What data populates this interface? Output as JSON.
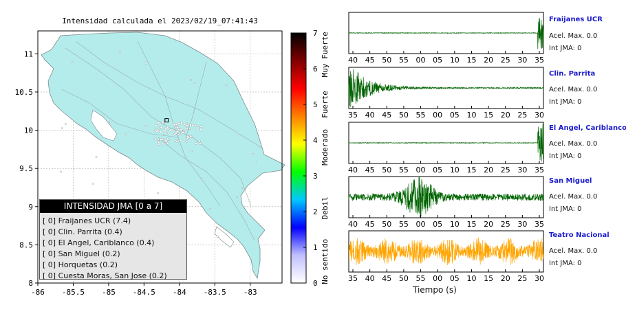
{
  "chart_data": [
    {
      "type": "map",
      "title": "Intensidad calculada el 2023/02/19_07:41:43",
      "x_ticks": [
        "-86",
        "-85.5",
        "-85",
        "-84.5",
        "-84",
        "-83.5",
        "-83"
      ],
      "y_ticks": [
        "11",
        "10.5",
        "10",
        "9.5",
        "9",
        "8.5",
        "8"
      ],
      "xlim": [
        -86,
        -82.55
      ],
      "ylim": [
        8,
        11.3
      ],
      "grid": true,
      "land_color": "#b4ecec",
      "sea_color": "#ffffff",
      "marker": {
        "lon": -84.18,
        "lat": 10.13
      }
    },
    {
      "type": "colorbar",
      "ticks": [
        "0",
        "1",
        "2",
        "3",
        "4",
        "5",
        "6",
        "7"
      ],
      "range": [
        0,
        7
      ],
      "category_labels": [
        "No sentido",
        "Debil",
        "Moderado",
        "Fuerte",
        "Muy Fuerte"
      ],
      "colors": [
        "#ffffff",
        "#c0c0ff",
        "#0000ff",
        "#00c8ff",
        "#00ff00",
        "#ffff00",
        "#ff8000",
        "#ff0000",
        "#800000",
        "#000000"
      ]
    },
    {
      "type": "line",
      "xlabel": "Tiempo (s)",
      "traces": [
        {
          "station": "Fraijanes UCR",
          "acel_text": "Acel. Max. 0.0",
          "jma_text": "Int JMA: 0",
          "color": "#006400",
          "ticks": [
            "40",
            "45",
            "50",
            "55",
            "00",
            "05",
            "10",
            "15",
            "20",
            "25",
            "30",
            "35"
          ],
          "burst": "end-small",
          "amp": 0.05
        },
        {
          "station": "Clin. Parrita",
          "acel_text": "Acel. Max. 0.0",
          "jma_text": "Int JMA: 0",
          "color": "#006400",
          "ticks": [
            "35",
            "40",
            "45",
            "50",
            "55",
            "00",
            "05",
            "10",
            "15",
            "20",
            "25",
            "30"
          ],
          "burst": "start-large",
          "amp": 0.3
        },
        {
          "station": "El Angel, Cariblanco",
          "acel_text": "Acel. Max. 0.0",
          "jma_text": "Int JMA: 0",
          "color": "#006400",
          "ticks": [
            "40",
            "45",
            "50",
            "55",
            "00",
            "05",
            "10",
            "15",
            "20",
            "25",
            "30",
            "35"
          ],
          "burst": "end-small",
          "amp": 0.02
        },
        {
          "station": "San Miguel",
          "acel_text": "Acel. Max. 0.0",
          "jma_text": "Int JMA: 0",
          "color": "#006400",
          "ticks": [
            "40",
            "45",
            "50",
            "55",
            "00",
            "05",
            "10",
            "15",
            "20",
            "25",
            "30",
            "35"
          ],
          "burst": "middle",
          "amp": 0.12
        },
        {
          "station": "Teatro Nacional",
          "acel_text": "Acel. Max. 0.0",
          "jma_text": "Int JMA: 0",
          "color": "#ffa500",
          "ticks": [
            "35",
            "40",
            "45",
            "50",
            "55",
            "00",
            "05",
            "10",
            "15",
            "20",
            "25",
            "30"
          ],
          "burst": "noise",
          "amp": 0.5
        }
      ]
    }
  ],
  "legend": {
    "header": "INTENSIDAD JMA [0 a 7]",
    "rows": [
      "[ 0]  Fraijanes UCR (7.4)",
      "[ 0]  Clin. Parrita (0.4)",
      "[ 0]  El Angel, Cariblanco (0.4)",
      "[ 0]  San Miguel (0.2)",
      "[ 0]  Horquetas (0.2)",
      "[ 0]  Cuesta Moras, San Jose (0.2)"
    ]
  }
}
